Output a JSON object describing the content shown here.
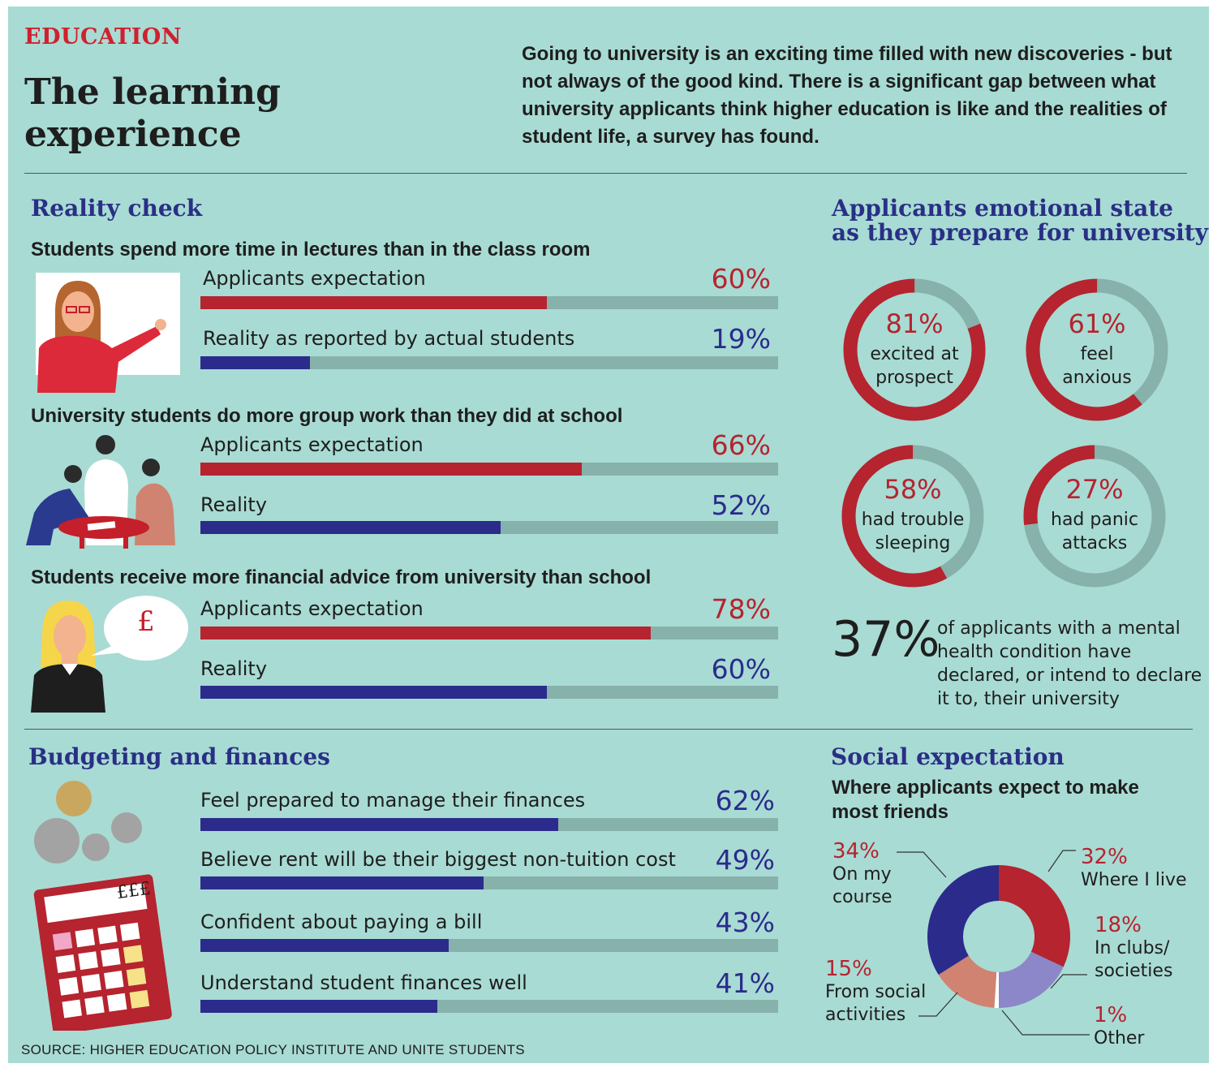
{
  "header": {
    "kicker": "EDUCATION",
    "title": "The learning experience",
    "intro": "Going to university is an exciting time filled with new discoveries - but not always of the good kind. There is a significant gap between what university applicants think higher education is like and the realities of student life, a survey has found."
  },
  "reality_check": {
    "heading": "Reality check",
    "groups": [
      {
        "title": "Students spend more time in lectures than in the class room",
        "rows": [
          {
            "label": "Applicants expectation",
            "pct_text": "60%",
            "value": 60,
            "color": "#b5242f"
          },
          {
            "label": "Reality as reported by actual students",
            "pct_text": "19%",
            "value": 19,
            "color": "#2b2b8c"
          }
        ]
      },
      {
        "title": "University students do more group work than they did at school",
        "rows": [
          {
            "label": "Applicants expectation",
            "pct_text": "66%",
            "value": 66,
            "color": "#b5242f"
          },
          {
            "label": "Reality",
            "pct_text": "52%",
            "value": 52,
            "color": "#2b2b8c"
          }
        ]
      },
      {
        "title": "Students receive more financial advice from university than school",
        "rows": [
          {
            "label": "Applicants expectation",
            "pct_text": "78%",
            "value": 78,
            "color": "#b5242f"
          },
          {
            "label": "Reality",
            "pct_text": "60%",
            "value": 60,
            "color": "#2b2b8c"
          }
        ]
      }
    ],
    "pound_symbol": "£"
  },
  "emotional": {
    "heading_line1": "Applicants emotional state",
    "heading_line2": "as they prepare for university",
    "rings": [
      {
        "pct_text": "81%",
        "value": 81,
        "line1": "excited at",
        "line2": "prospect"
      },
      {
        "pct_text": "61%",
        "value": 61,
        "line1": "feel",
        "line2": "anxious"
      },
      {
        "pct_text": "58%",
        "value": 58,
        "line1": "had trouble",
        "line2": "sleeping"
      },
      {
        "pct_text": "27%",
        "value": 27,
        "line1": "had panic",
        "line2": "attacks"
      }
    ],
    "stat_value": "37%",
    "stat_text": "of applicants with a mental health condition have declared, or intend to declare it to, their university"
  },
  "budgeting": {
    "heading": "Budgeting and finances",
    "calculator_display": "£££",
    "rows": [
      {
        "label": "Feel prepared to manage their finances",
        "pct_text": "62%",
        "value": 62
      },
      {
        "label": "Believe rent will be their biggest non-tuition cost",
        "pct_text": "49%",
        "value": 49
      },
      {
        "label": "Confident about paying a bill",
        "pct_text": "43%",
        "value": 43
      },
      {
        "label": "Understand student finances well",
        "pct_text": "41%",
        "value": 41
      }
    ]
  },
  "social": {
    "heading": "Social expectation",
    "subheading_line1": "Where applicants expect to make",
    "subheading_line2": "most friends",
    "labels": {
      "where_live_pct": "32%",
      "where_live": "Where I live",
      "clubs_pct": "18%",
      "clubs_1": "In clubs/",
      "clubs_2": "societies",
      "other_pct": "1%",
      "other": "Other",
      "social_pct": "15%",
      "social_1": "From social",
      "social_2": "activities",
      "course_pct": "34%",
      "course_1": "On my",
      "course_2": "course"
    }
  },
  "source": "SOURCE: HIGHER EDUCATION POLICY INSTITUTE AND UNITE STUDENTS",
  "chart_data": [
    {
      "type": "bar",
      "title": "Students spend more time in lectures than in the class room",
      "categories": [
        "Applicants expectation",
        "Reality as reported by actual students"
      ],
      "values": [
        60,
        19
      ],
      "ylim": [
        0,
        100
      ]
    },
    {
      "type": "bar",
      "title": "University students do more group work than they did at school",
      "categories": [
        "Applicants expectation",
        "Reality"
      ],
      "values": [
        66,
        52
      ],
      "ylim": [
        0,
        100
      ]
    },
    {
      "type": "bar",
      "title": "Students receive more financial advice from university than school",
      "categories": [
        "Applicants expectation",
        "Reality"
      ],
      "values": [
        78,
        60
      ],
      "ylim": [
        0,
        100
      ]
    },
    {
      "type": "pie",
      "title": "Applicants emotional state as they prepare for university",
      "categories": [
        "excited at prospect",
        "feel anxious",
        "had trouble sleeping",
        "had panic attacks"
      ],
      "values": [
        81,
        61,
        58,
        27
      ]
    },
    {
      "type": "bar",
      "title": "Budgeting and finances",
      "categories": [
        "Feel prepared to manage their finances",
        "Believe rent will be their biggest non-tuition cost",
        "Confident about paying a bill",
        "Understand student finances well"
      ],
      "values": [
        62,
        49,
        43,
        41
      ],
      "ylim": [
        0,
        100
      ]
    },
    {
      "type": "pie",
      "title": "Where applicants expect to make most friends",
      "categories": [
        "Where I live",
        "In clubs/ societies",
        "Other",
        "From social activities",
        "On my course"
      ],
      "values": [
        32,
        18,
        1,
        15,
        34
      ],
      "colors": [
        "#b5242f",
        "#8c87c8",
        "#ffffff",
        "#d08370",
        "#2b2b8c"
      ]
    }
  ]
}
